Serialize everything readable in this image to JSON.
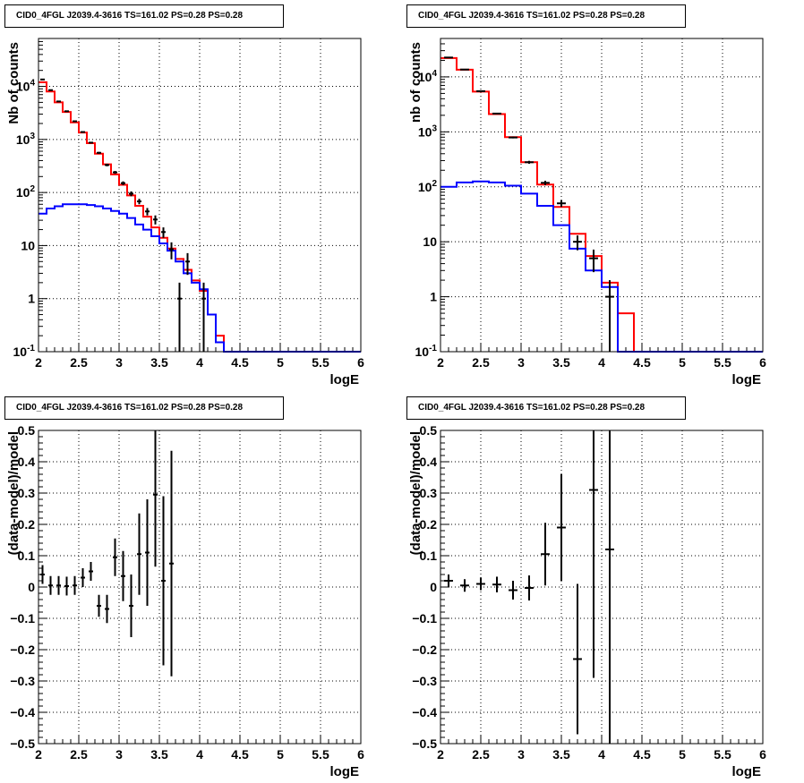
{
  "colors": {
    "data": "#000000",
    "total_model": "#ff0000",
    "background_model": "#0000ff",
    "grid": "#000000",
    "frame": "#000000"
  },
  "chart_data": [
    {
      "type": "line",
      "title": "CID0_4FGL J2039.4-3616 TS=161.02 PS=0.28 PS=0.28",
      "xlabel": "logE",
      "ylabel": "Nb of counts",
      "xlim": [
        2,
        6
      ],
      "ylim": [
        0.1,
        80000
      ],
      "yscale": "log",
      "grid": true,
      "xticks": [
        "2",
        "2.5",
        "3",
        "3.5",
        "4",
        "4.5",
        "5",
        "5.5",
        "6"
      ],
      "yticks": [
        "10^-1",
        "1",
        "10",
        "10^2",
        "10^3",
        "10^4"
      ],
      "bin_edges": [
        2.0,
        2.1,
        2.2,
        2.3,
        2.4,
        2.5,
        2.6,
        2.7,
        2.8,
        2.9,
        3.0,
        3.1,
        3.2,
        3.3,
        3.4,
        3.5,
        3.6,
        3.7,
        3.8,
        3.9,
        4.0,
        4.1,
        4.2,
        4.3,
        4.4,
        4.5,
        4.6,
        4.7,
        4.8,
        4.9,
        5.0,
        5.1,
        5.2,
        5.3,
        5.4,
        5.5,
        5.6,
        5.7,
        5.8,
        5.9,
        6.0
      ],
      "series": [
        {
          "color": "#ff0000",
          "style": "step",
          "values": [
            12000,
            8000,
            5000,
            3300,
            2100,
            1350,
            850,
            540,
            340,
            220,
            140,
            88,
            56,
            35,
            22,
            14,
            8.8,
            5.6,
            3.5,
            2.2,
            1.4,
            0.5,
            0.2,
            0.1,
            0.1,
            0.1,
            0.1,
            0.1,
            0.1,
            0.1,
            0.1,
            0.1,
            0.1,
            0.1,
            0.1,
            0.1,
            0.1,
            0.1,
            0.1,
            0.1
          ]
        },
        {
          "color": "#0000ff",
          "style": "step",
          "values": [
            40,
            50,
            55,
            60,
            60,
            60,
            58,
            55,
            50,
            45,
            40,
            33,
            25,
            20,
            15,
            11,
            8,
            5,
            3,
            2,
            1.5,
            0.5,
            0.15,
            0.1,
            0.1,
            0.1,
            0.1,
            0.1,
            0.1,
            0.1,
            0.1,
            0.1,
            0.1,
            0.1,
            0.1,
            0.1,
            0.1,
            0.1,
            0.1,
            0.1
          ]
        },
        {
          "color": "#000000",
          "style": "points",
          "x": [
            2.05,
            2.15,
            2.25,
            2.35,
            2.45,
            2.55,
            2.65,
            2.75,
            2.85,
            2.95,
            3.05,
            3.15,
            3.25,
            3.35,
            3.45,
            3.55,
            3.65,
            3.75,
            3.85,
            3.95,
            4.05
          ],
          "values": [
            13500,
            8500,
            5200,
            3400,
            2200,
            1380,
            870,
            560,
            330,
            240,
            150,
            95,
            68,
            44,
            31,
            18,
            8.5,
            1.0,
            5.0,
            0,
            1.0
          ],
          "err": [
            116,
            92,
            72,
            58,
            47,
            37,
            29,
            24,
            18,
            15,
            12,
            10,
            8,
            7,
            6,
            4,
            3,
            1,
            2.2,
            0,
            1
          ]
        }
      ]
    },
    {
      "type": "line",
      "title": "CID0_4FGL J2039.4-3616 TS=161.02 PS=0.28 PS=0.28",
      "xlabel": "logE",
      "ylabel": "nb of counts",
      "xlim": [
        2,
        6
      ],
      "ylim": [
        0.1,
        50000
      ],
      "yscale": "log",
      "grid": true,
      "xticks": [
        "2",
        "2.5",
        "3",
        "3.5",
        "4",
        "4.5",
        "5",
        "5.5",
        "6"
      ],
      "yticks": [
        "10^-1",
        "1",
        "10",
        "10^2",
        "10^3",
        "10^4"
      ],
      "bin_edges": [
        2.0,
        2.2,
        2.4,
        2.6,
        2.8,
        3.0,
        3.2,
        3.4,
        3.6,
        3.8,
        4.0,
        4.2,
        4.4,
        4.6,
        4.8,
        5.0,
        5.2,
        5.4,
        5.6,
        5.8,
        6.0
      ],
      "series": [
        {
          "color": "#ff0000",
          "style": "step",
          "values": [
            22000,
            13500,
            5400,
            2100,
            800,
            280,
            110,
            43,
            14,
            5.5,
            1.8,
            0.5,
            0.1,
            0.1,
            0.1,
            0.1,
            0.1,
            0.1,
            0.1,
            0.1
          ]
        },
        {
          "color": "#0000ff",
          "style": "step",
          "values": [
            100,
            120,
            125,
            120,
            105,
            75,
            45,
            20,
            7.5,
            3.0,
            1.5,
            0.1,
            0.1,
            0.1,
            0.1,
            0.1,
            0.1,
            0.1,
            0.1,
            0.1
          ]
        },
        {
          "color": "#000000",
          "style": "points",
          "x": [
            2.1,
            2.3,
            2.5,
            2.7,
            2.9,
            3.1,
            3.3,
            3.5,
            3.7,
            3.9,
            4.1
          ],
          "values": [
            22500,
            13600,
            5500,
            2150,
            790,
            280,
            118,
            50,
            10,
            5,
            1.0
          ],
          "err": [
            150,
            117,
            74,
            46,
            28,
            17,
            11,
            7,
            3,
            2.2,
            1
          ]
        }
      ]
    },
    {
      "type": "scatter",
      "title": "CID0_4FGL J2039.4-3616 TS=161.02 PS=0.28 PS=0.28",
      "xlabel": "logE",
      "ylabel": "(data-model)/model",
      "xlim": [
        2,
        6
      ],
      "ylim": [
        -0.5,
        0.5
      ],
      "grid": true,
      "xticks": [
        "2",
        "2.5",
        "3",
        "3.5",
        "4",
        "4.5",
        "5",
        "5.5",
        "6"
      ],
      "yticks": [
        "-0.5",
        "-0.4",
        "-0.3",
        "-0.2",
        "-0.1",
        "0",
        "0.1",
        "0.2",
        "0.3",
        "0.4",
        "0.5"
      ],
      "series": [
        {
          "color": "#000000",
          "x": [
            2.05,
            2.15,
            2.25,
            2.35,
            2.45,
            2.55,
            2.65,
            2.75,
            2.85,
            2.95,
            3.05,
            3.15,
            3.25,
            3.35,
            3.45,
            3.55,
            3.65
          ],
          "values": [
            0.04,
            0.005,
            0.005,
            0.003,
            0.005,
            0.03,
            0.05,
            -0.06,
            -0.07,
            0.095,
            0.035,
            -0.06,
            0.105,
            0.11,
            0.295,
            0.02,
            0.075
          ],
          "err": [
            0.03,
            0.03,
            0.03,
            0.03,
            0.03,
            0.03,
            0.03,
            0.035,
            0.045,
            0.06,
            0.08,
            0.1,
            0.13,
            0.17,
            0.23,
            0.27,
            0.36
          ]
        }
      ]
    },
    {
      "type": "scatter",
      "title": "CID0_4FGL J2039.4-3616 TS=161.02 PS=0.28 PS=0.28",
      "xlabel": "logE",
      "ylabel": "(data-model)/model",
      "xlim": [
        2,
        6
      ],
      "ylim": [
        -0.5,
        0.5
      ],
      "grid": true,
      "xticks": [
        "2",
        "2.5",
        "3",
        "3.5",
        "4",
        "4.5",
        "5",
        "5.5",
        "6"
      ],
      "yticks": [
        "-0.5",
        "-0.4",
        "-0.3",
        "-0.2",
        "-0.1",
        "0",
        "0.1",
        "0.2",
        "0.3",
        "0.4",
        "0.5"
      ],
      "series": [
        {
          "color": "#000000",
          "x": [
            2.1,
            2.3,
            2.5,
            2.7,
            2.9,
            3.1,
            3.3,
            3.5,
            3.7,
            3.9,
            4.1
          ],
          "values": [
            0.02,
            0.005,
            0.01,
            0.008,
            -0.01,
            -0.003,
            0.105,
            0.19,
            -0.23,
            0.31,
            0.12
          ],
          "err": [
            0.02,
            0.02,
            0.02,
            0.025,
            0.03,
            0.04,
            0.1,
            0.17,
            0.24,
            0.6,
            0.65
          ]
        }
      ]
    }
  ]
}
